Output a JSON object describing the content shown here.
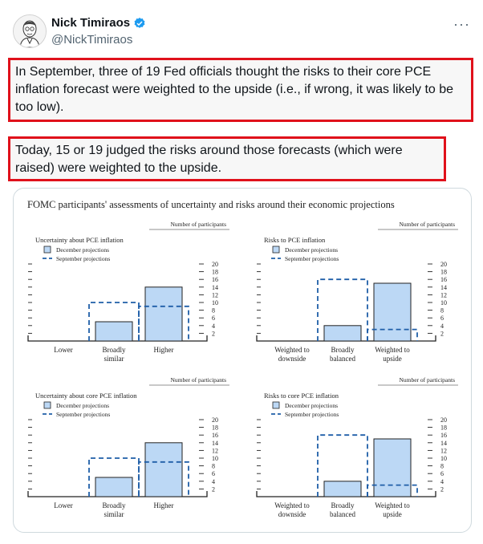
{
  "author": {
    "display_name": "Nick Timiraos",
    "handle": "@NickTimiraos",
    "avatar_icon": "avatar-illustration-icon",
    "verified_color": "#1d9bf0"
  },
  "more_label": "···",
  "tweet": {
    "paragraph1": "In September, three of 19 Fed officials thought the risks to their core PCE inflation forecast were weighted to the upside (i.e., if wrong, it was likely to be too low).",
    "paragraph2": "Today, 15 or 19 judged the risks around those forecasts (which were raised) were weighted to the upside."
  },
  "figure": {
    "title": "FOMC participants' assessments of uncertainty and risks around their economic projections"
  },
  "chart_data": [
    {
      "type": "bar",
      "title": "Uncertainty about PCE inflation",
      "unit_label": "Number of participants",
      "categories": [
        "Lower",
        "Broadly similar",
        "Higher"
      ],
      "series": [
        {
          "name": "December projections",
          "values": [
            0,
            5,
            14
          ]
        },
        {
          "name": "September projections",
          "values": [
            0,
            10,
            9
          ]
        }
      ],
      "ylim": [
        0,
        20
      ],
      "yticks": [
        2,
        4,
        6,
        8,
        10,
        12,
        14,
        16,
        18,
        20
      ]
    },
    {
      "type": "bar",
      "title": "Risks to PCE inflation",
      "unit_label": "Number of participants",
      "categories": [
        "Weighted to downside",
        "Broadly balanced",
        "Weighted to upside"
      ],
      "series": [
        {
          "name": "December projections",
          "values": [
            0,
            4,
            15
          ]
        },
        {
          "name": "September projections",
          "values": [
            0,
            16,
            3
          ]
        }
      ],
      "ylim": [
        0,
        20
      ],
      "yticks": [
        2,
        4,
        6,
        8,
        10,
        12,
        14,
        16,
        18,
        20
      ]
    },
    {
      "type": "bar",
      "title": "Uncertainty about core PCE inflation",
      "unit_label": "Number of participants",
      "categories": [
        "Lower",
        "Broadly similar",
        "Higher"
      ],
      "series": [
        {
          "name": "December projections",
          "values": [
            0,
            5,
            14
          ]
        },
        {
          "name": "September projections",
          "values": [
            0,
            10,
            9
          ]
        }
      ],
      "ylim": [
        0,
        20
      ],
      "yticks": [
        2,
        4,
        6,
        8,
        10,
        12,
        14,
        16,
        18,
        20
      ]
    },
    {
      "type": "bar",
      "title": "Risks to core PCE inflation",
      "unit_label": "Number of participants",
      "categories": [
        "Weighted to downside",
        "Broadly balanced",
        "Weighted to upside"
      ],
      "series": [
        {
          "name": "December projections",
          "values": [
            0,
            4,
            15
          ]
        },
        {
          "name": "September projections",
          "values": [
            0,
            16,
            3
          ]
        }
      ],
      "ylim": [
        0,
        20
      ],
      "yticks": [
        2,
        4,
        6,
        8,
        10,
        12,
        14,
        16,
        18,
        20
      ]
    }
  ],
  "colors": {
    "bar_fill": "#bcd8f5",
    "bar_stroke": "#222222",
    "dashed": "#1f5ea8",
    "highlight": "#e0111b"
  }
}
